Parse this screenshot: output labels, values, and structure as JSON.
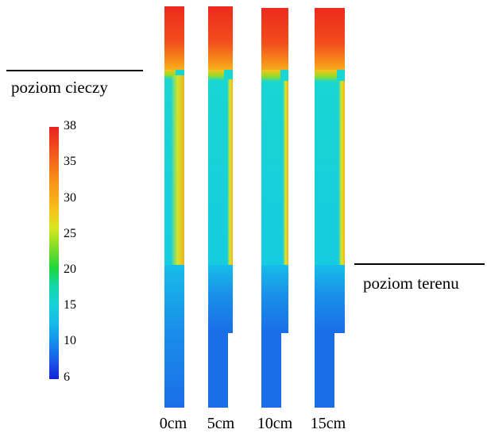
{
  "labels": {
    "liquid_level": "poziom cieczy",
    "ground_level": "poziom terenu"
  },
  "colorbar": {
    "ticks": [
      "38",
      "35",
      "30",
      "25",
      "20",
      "15",
      "10",
      "6"
    ],
    "colors_top_to_bottom": [
      "#e8231f",
      "#f78a1a",
      "#f9c11c",
      "#7fdc29",
      "#1fd63a",
      "#15d3d9",
      "#1583ec",
      "#1424d9"
    ]
  },
  "columns": [
    {
      "label": "0cm"
    },
    {
      "label": "5cm"
    },
    {
      "label": "10cm"
    },
    {
      "label": "15cm"
    }
  ]
}
